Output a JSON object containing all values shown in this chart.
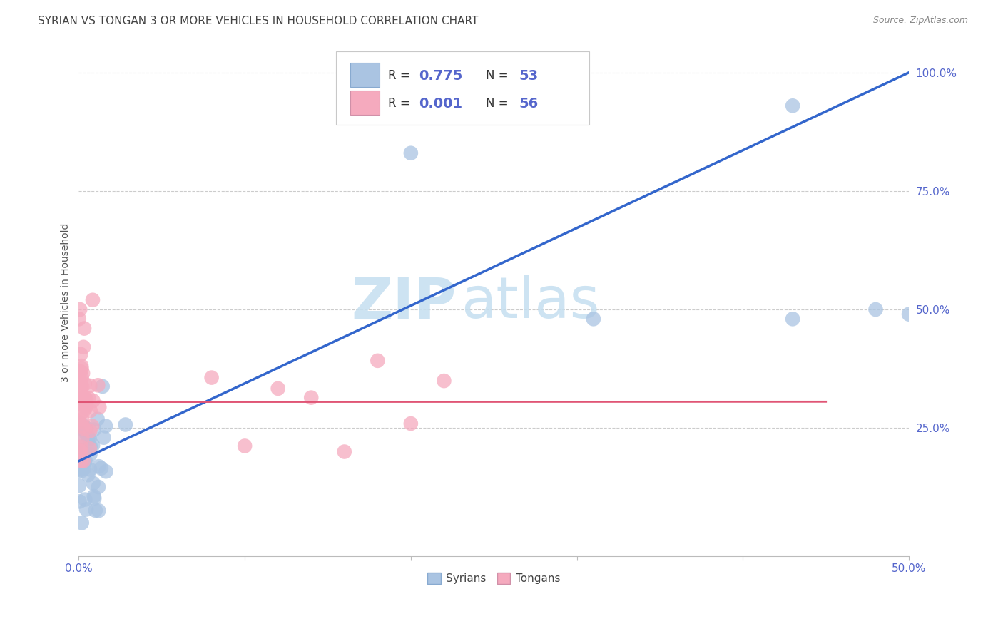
{
  "title": "SYRIAN VS TONGAN 3 OR MORE VEHICLES IN HOUSEHOLD CORRELATION CHART",
  "source": "Source: ZipAtlas.com",
  "ylabel": "3 or more Vehicles in Household",
  "xlim": [
    0.0,
    0.5
  ],
  "ylim": [
    -0.02,
    1.05
  ],
  "R_syrian": 0.775,
  "N_syrian": 53,
  "R_tongan": 0.001,
  "N_tongan": 56,
  "syrian_color": "#aac4e2",
  "tongan_color": "#f5aabe",
  "syrian_line_color": "#3366cc",
  "tongan_line_color": "#e05575",
  "background_color": "#ffffff",
  "watermark_zip": "ZIP",
  "watermark_atlas": "atlas",
  "grid_color": "#cccccc",
  "tick_color": "#5566cc",
  "title_color": "#444444",
  "source_color": "#888888",
  "slope_syr": 1.64,
  "intercept_syr": 0.18,
  "intercept_ton": 0.305,
  "slope_ton": 0.001
}
